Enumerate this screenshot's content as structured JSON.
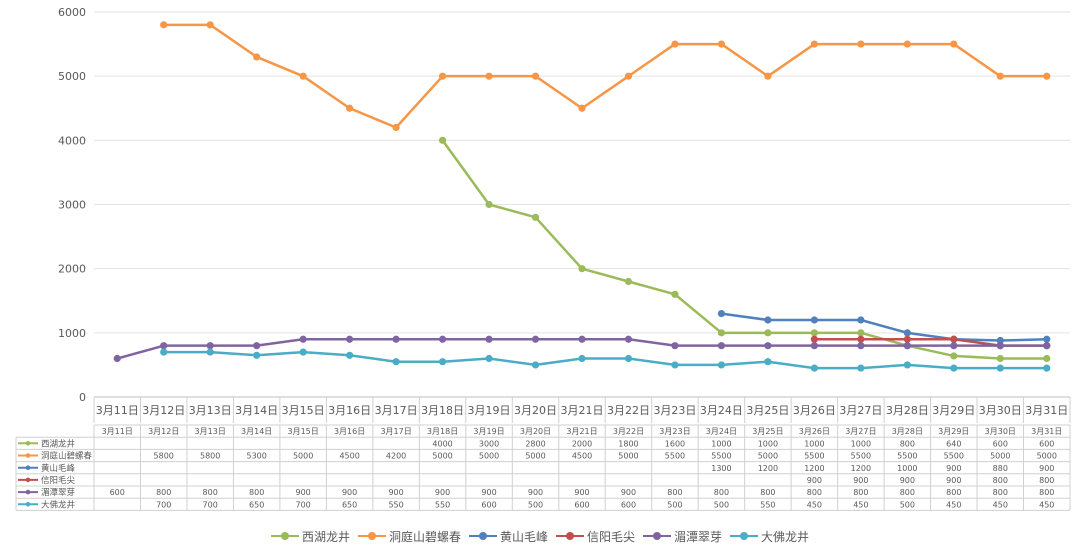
{
  "chart_data": {
    "type": "line",
    "categories": [
      "3月11日",
      "3月12日",
      "3月13日",
      "3月14日",
      "3月15日",
      "3月16日",
      "3月17日",
      "3月18日",
      "3月19日",
      "3月20日",
      "3月21日",
      "3月22日",
      "3月23日",
      "3月24日",
      "3月25日",
      "3月26日",
      "3月27日",
      "3月28日",
      "3月29日",
      "3月30日",
      "3月31日"
    ],
    "ylim": [
      0,
      6000
    ],
    "yticks": [
      0,
      1000,
      2000,
      3000,
      4000,
      5000,
      6000
    ],
    "grid": true,
    "legend_position": "bottom",
    "series": [
      {
        "name": "西湖龙井",
        "color": "#9BBB59",
        "values": [
          null,
          null,
          null,
          null,
          null,
          null,
          null,
          4000,
          3000,
          2800,
          2000,
          1800,
          1600,
          1000,
          1000,
          1000,
          1000,
          800,
          640,
          600,
          600
        ]
      },
      {
        "name": "洞庭山碧螺春",
        "color": "#F79646",
        "values": [
          null,
          5800,
          5800,
          5300,
          5000,
          4500,
          4200,
          5000,
          5000,
          5000,
          4500,
          5000,
          5500,
          5500,
          5000,
          5500,
          5500,
          5500,
          5500,
          5000,
          5000
        ]
      },
      {
        "name": "黄山毛峰",
        "color": "#4F81BD",
        "values": [
          null,
          null,
          null,
          null,
          null,
          null,
          null,
          null,
          null,
          null,
          null,
          null,
          null,
          1300,
          1200,
          1200,
          1200,
          1000,
          900,
          880,
          900
        ]
      },
      {
        "name": "信阳毛尖",
        "color": "#C0504D",
        "values": [
          null,
          null,
          null,
          null,
          null,
          null,
          null,
          null,
          null,
          null,
          null,
          null,
          null,
          null,
          null,
          900,
          900,
          900,
          900,
          800,
          800
        ]
      },
      {
        "name": "湄潭翠芽",
        "color": "#8064A2",
        "values": [
          600,
          800,
          800,
          800,
          900,
          900,
          900,
          900,
          900,
          900,
          900,
          900,
          800,
          800,
          800,
          800,
          800,
          800,
          800,
          800,
          800
        ]
      },
      {
        "name": "大佛龙井",
        "color": "#4BACC6",
        "values": [
          null,
          700,
          700,
          650,
          700,
          650,
          550,
          550,
          600,
          500,
          600,
          600,
          500,
          500,
          550,
          450,
          450,
          500,
          450,
          450,
          450
        ]
      }
    ]
  }
}
